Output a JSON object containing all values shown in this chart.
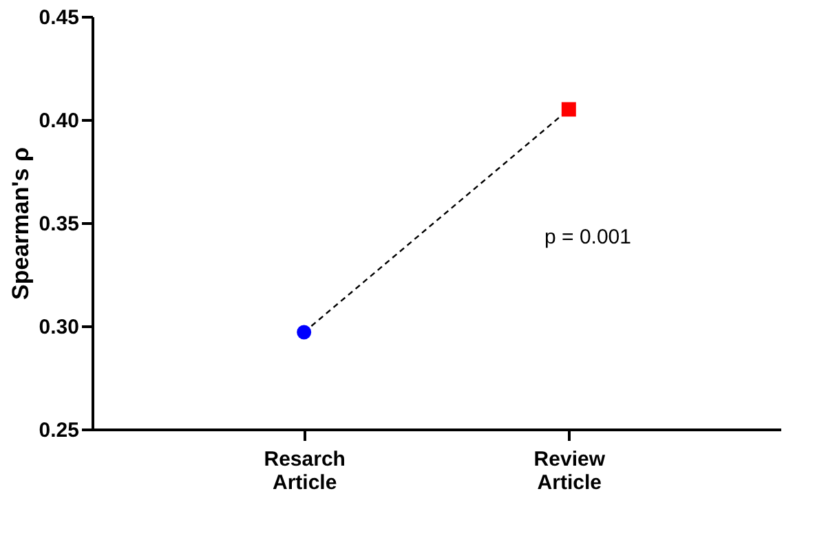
{
  "chart_data": {
    "type": "line",
    "ylabel": "Spearman's ρ",
    "categories": [
      "Resarch Article",
      "Review Article"
    ],
    "series": [
      {
        "color": "#000000",
        "line_style": "dashed",
        "marker": "none",
        "values": [
          0.297,
          0.405
        ]
      },
      {
        "type": "scatter",
        "color": "#0000ff",
        "marker": "circle",
        "values": [
          0.297,
          null
        ]
      },
      {
        "type": "scatter",
        "color": "#ff0000",
        "marker": "square",
        "values": [
          null,
          0.405
        ]
      }
    ],
    "ylim": [
      0.25,
      0.45
    ],
    "yticks": [
      0.25,
      {
        "value": 0.3,
        "label": "0.30"
      },
      0.35,
      {
        "value": 0.4,
        "label": "0.40"
      },
      0.45
    ],
    "grid": false,
    "annotations": [
      "p = 0.001"
    ]
  }
}
